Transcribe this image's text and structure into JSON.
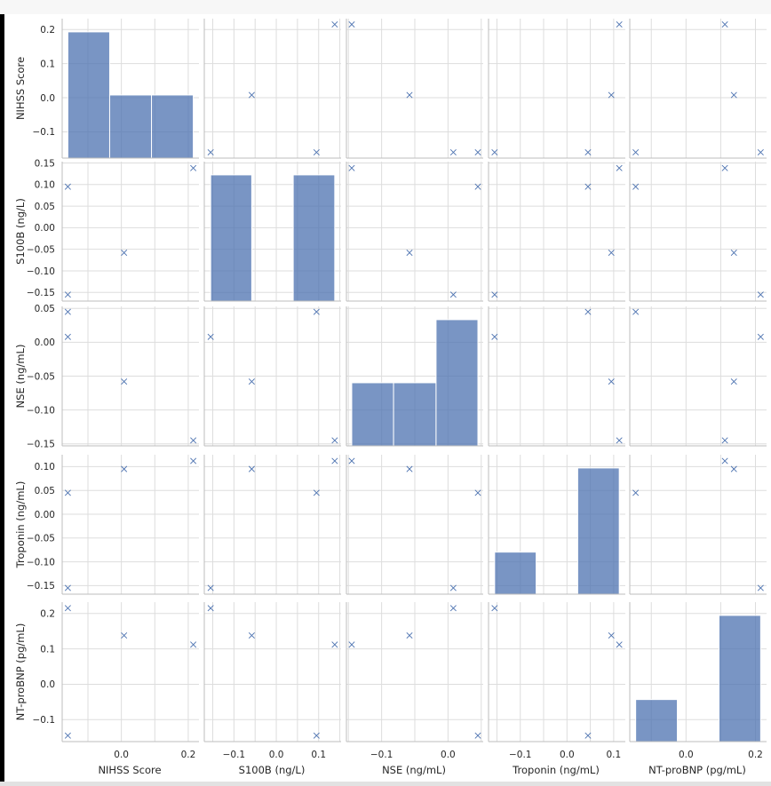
{
  "chart_data": {
    "type": "pairplot",
    "variables": [
      "NIHSS Score",
      "S100B (ng/L)",
      "NSE (ng/mL)",
      "Troponin (ng/mL)",
      "NT-proBNP (pg/mL)"
    ],
    "observations": [
      {
        "NIHSS Score": -0.16,
        "S100B (ng/L)": 0.095,
        "NSE (ng/mL)": 0.045,
        "Troponin (ng/mL)": 0.045,
        "NT-proBNP (pg/mL)": -0.145
      },
      {
        "NIHSS Score": -0.16,
        "S100B (ng/L)": -0.155,
        "NSE (ng/mL)": 0.008,
        "Troponin (ng/mL)": -0.155,
        "NT-proBNP (pg/mL)": 0.215
      },
      {
        "NIHSS Score": 0.008,
        "S100B (ng/L)": -0.058,
        "NSE (ng/mL)": -0.058,
        "Troponin (ng/mL)": 0.095,
        "NT-proBNP (pg/mL)": 0.138
      },
      {
        "NIHSS Score": 0.215,
        "S100B (ng/L)": 0.138,
        "NSE (ng/mL)": -0.145,
        "Troponin (ng/mL)": 0.112,
        "NT-proBNP (pg/mL)": 0.112
      }
    ],
    "ranges": {
      "NIHSS Score": [
        -0.177,
        0.232
      ],
      "S100B (ng/L)": [
        -0.17,
        0.153
      ],
      "NSE (ng/mL)": [
        -0.153,
        0.053
      ],
      "Troponin (ng/mL)": [
        -0.168,
        0.125
      ],
      "NT-proBNP (pg/mL)": [
        -0.162,
        0.232
      ]
    },
    "ticks": {
      "NIHSS Score": [
        -0.1,
        0.0,
        0.1,
        0.2
      ],
      "S100B (ng/L)": [
        -0.15,
        -0.1,
        -0.05,
        0.0,
        0.05,
        0.1,
        0.15
      ],
      "NSE (ng/mL)": [
        -0.15,
        -0.1,
        -0.05,
        0.0,
        0.05
      ],
      "Troponin (ng/mL)": [
        -0.15,
        -0.1,
        -0.05,
        0.0,
        0.05,
        0.1
      ],
      "NT-proBNP (pg/mL)": [
        -0.1,
        0.0,
        0.1,
        0.2
      ]
    },
    "tick_labels": {
      "NIHSS Score": [
        "−0.1",
        "0.0",
        "0.1",
        "0.2"
      ],
      "S100B (ng/L)": [
        "−0.15",
        "−0.10",
        "−0.05",
        "0.00",
        "0.05",
        "0.10",
        "0.15"
      ],
      "NSE (ng/mL)": [
        "−0.15",
        "−0.10",
        "−0.05",
        "0.00",
        "0.05"
      ],
      "Troponin (ng/mL)": [
        "−0.15",
        "−0.10",
        "−0.05",
        "0.00",
        "0.05",
        "0.10"
      ],
      "NT-proBNP (pg/mL)": [
        "−0.1",
        "0.0",
        "0.1",
        "0.2"
      ]
    },
    "x_tick_labels_shown": {
      "NIHSS Score": [
        "0.0",
        "0.2"
      ],
      "S100B (ng/L)": [
        "−0.1",
        "0.0",
        "0.1"
      ],
      "NSE (ng/mL)": [
        "−0.1",
        "0.0"
      ],
      "Troponin (ng/mL)": [
        "−0.1",
        "0.0",
        "0.1"
      ],
      "NT-proBNP (pg/mL)": [
        "0.0",
        "0.2"
      ]
    },
    "x_tick_values_shown": {
      "NIHSS Score": [
        0.0,
        0.2
      ],
      "S100B (ng/L)": [
        -0.1,
        0.0,
        0.1
      ],
      "NSE (ng/mL)": [
        -0.1,
        0.0
      ],
      "Troponin (ng/mL)": [
        -0.1,
        0.0,
        0.1
      ],
      "NT-proBNP (pg/mL)": [
        0.0,
        0.2
      ]
    },
    "histograms": {
      "NIHSS Score": {
        "edges": [
          -0.16,
          -0.035,
          0.09,
          0.215
        ],
        "counts": [
          2,
          1,
          1
        ]
      },
      "S100B (ng/L)": {
        "edges": [
          -0.155,
          -0.058,
          0.04,
          0.138
        ],
        "counts": [
          2,
          0,
          2
        ]
      },
      "NSE (ng/mL)": {
        "edges": [
          -0.145,
          -0.082,
          -0.018,
          0.045
        ],
        "counts": [
          1,
          1,
          2
        ]
      },
      "Troponin (ng/mL)": {
        "edges": [
          -0.155,
          -0.066,
          0.023,
          0.112
        ],
        "counts": [
          1,
          0,
          3
        ]
      },
      "NT-proBNP (pg/mL)": {
        "edges": [
          -0.145,
          -0.025,
          0.095,
          0.215
        ],
        "counts": [
          1,
          0,
          3
        ]
      }
    },
    "marker": "x",
    "color": "#4c72b0",
    "grid": true,
    "legend": "none"
  }
}
